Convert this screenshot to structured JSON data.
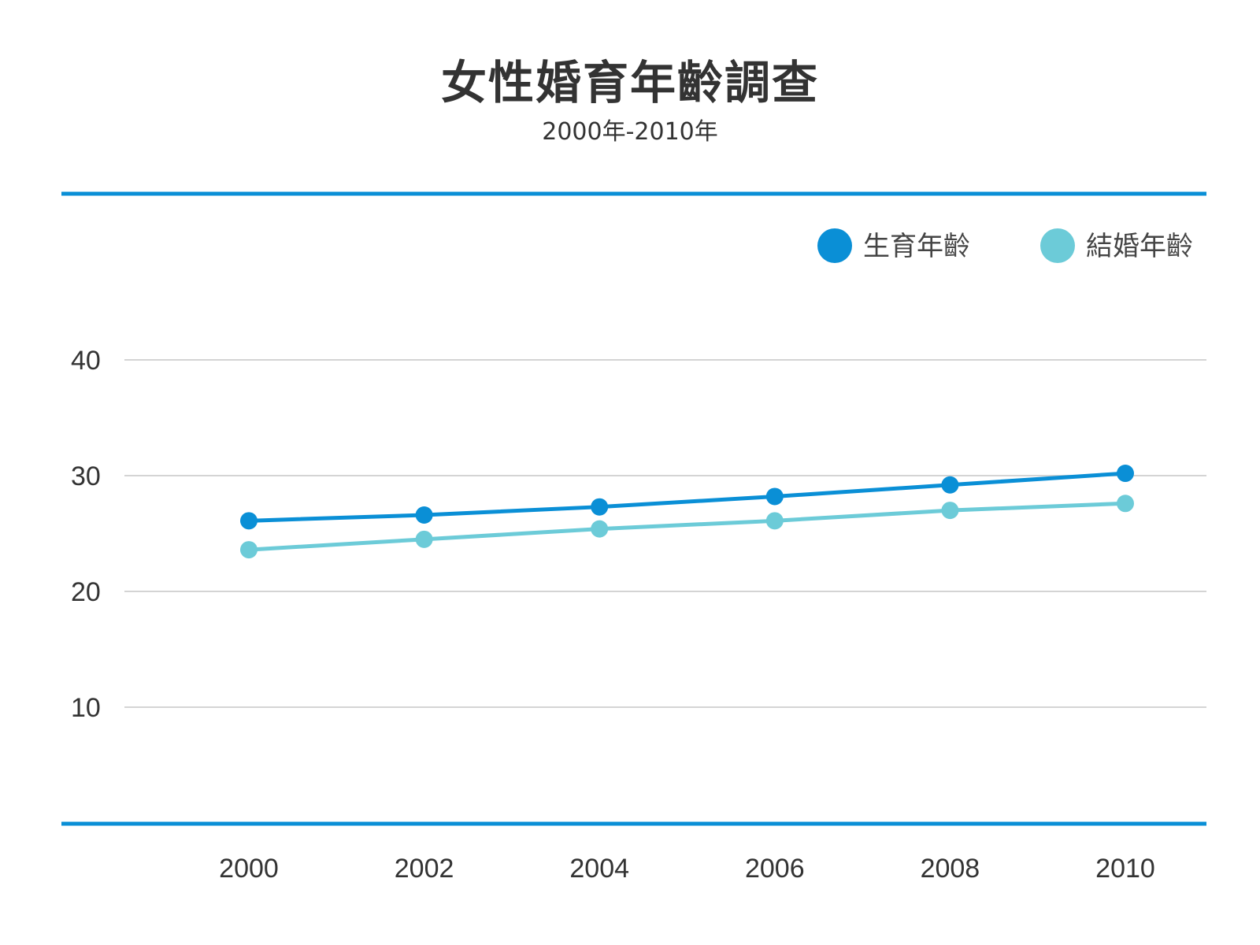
{
  "chart_data": {
    "type": "line",
    "title": "女性婚育年齡調查",
    "subtitle": "2000年-2010年",
    "categories": [
      "2000",
      "2002",
      "2004",
      "2006",
      "2008",
      "2010"
    ],
    "yticks": [
      "10",
      "20",
      "30",
      "40"
    ],
    "ylim": [
      0,
      40
    ],
    "grid": true,
    "legend_position": "top-right",
    "series": [
      {
        "name": "生育年齡",
        "color": "#0a8fd6",
        "values": [
          26.1,
          26.6,
          27.3,
          28.2,
          29.2,
          30.2
        ]
      },
      {
        "name": "結婚年齡",
        "color": "#6ccbd8",
        "values": [
          23.6,
          24.5,
          25.4,
          26.1,
          27.0,
          27.6
        ]
      }
    ]
  }
}
